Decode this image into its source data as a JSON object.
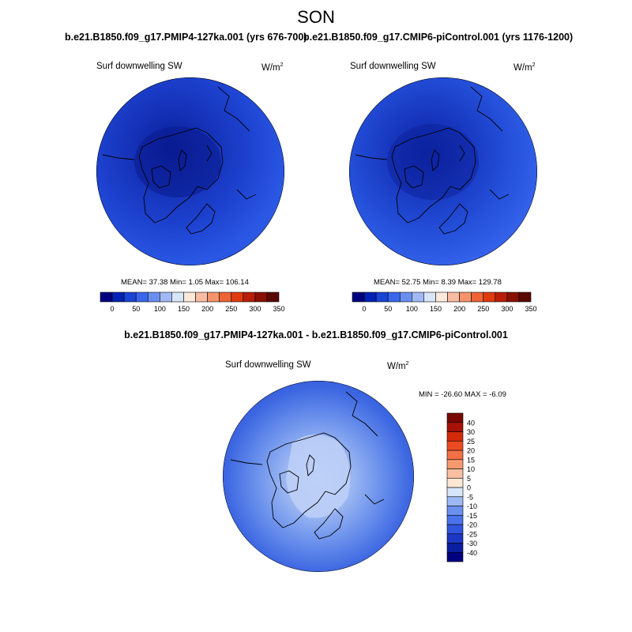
{
  "figure": {
    "season": "SON"
  },
  "panels": [
    {
      "title": "b.e21.B1850.f09_g17.PMIP4-127ka.001 (yrs 676-700)",
      "variable": "Surf downwelling SW",
      "units_base": "W/m",
      "units_exp": "2",
      "stats": "MEAN=  37.38  Min=   1.05  Max= 106.14"
    },
    {
      "title": "b.e21.B1850.f09_g17.CMIP6-piControl.001 (yrs 1176-1200)",
      "variable": "Surf downwelling SW",
      "units_base": "W/m",
      "units_exp": "2",
      "stats": "MEAN=  52.75  Min=   8.39  Max= 129.78"
    },
    {
      "title": "b.e21.B1850.f09_g17.PMIP4-127ka.001 - b.e21.B1850.f09_g17.CMIP6-piControl.001",
      "variable": "Surf downwelling SW",
      "units_base": "W/m",
      "units_exp": "2",
      "stats": "MIN = -26.60 MAX =  -6.09"
    }
  ],
  "colorbars": {
    "absolute": {
      "colors": [
        "#000080",
        "#0022b4",
        "#1a44d6",
        "#3a66ec",
        "#6a8ef0",
        "#a0b8f4",
        "#d8e6fa",
        "#fde8dc",
        "#f8bca4",
        "#f4936c",
        "#ee6436",
        "#e03a10",
        "#b81e08",
        "#8a1004",
        "#5a0800"
      ],
      "labels": [
        "0",
        "50",
        "100",
        "150",
        "200",
        "250",
        "300",
        "350"
      ]
    },
    "difference": {
      "colors": [
        "#000080",
        "#0a1ea0",
        "#1c38c4",
        "#3056e0",
        "#4a72ec",
        "#6a90f0",
        "#9cb8f4",
        "#d6e6fa",
        "#fde6d4",
        "#f8bfa0",
        "#f49a6c",
        "#f27046",
        "#ec4a22",
        "#d42a0c",
        "#a81206",
        "#7a0800"
      ],
      "labels": [
        "40",
        "30",
        "25",
        "20",
        "15",
        "10",
        "5",
        "0",
        "-5",
        "-10",
        "-15",
        "-20",
        "-25",
        "-30",
        "-40"
      ]
    }
  }
}
